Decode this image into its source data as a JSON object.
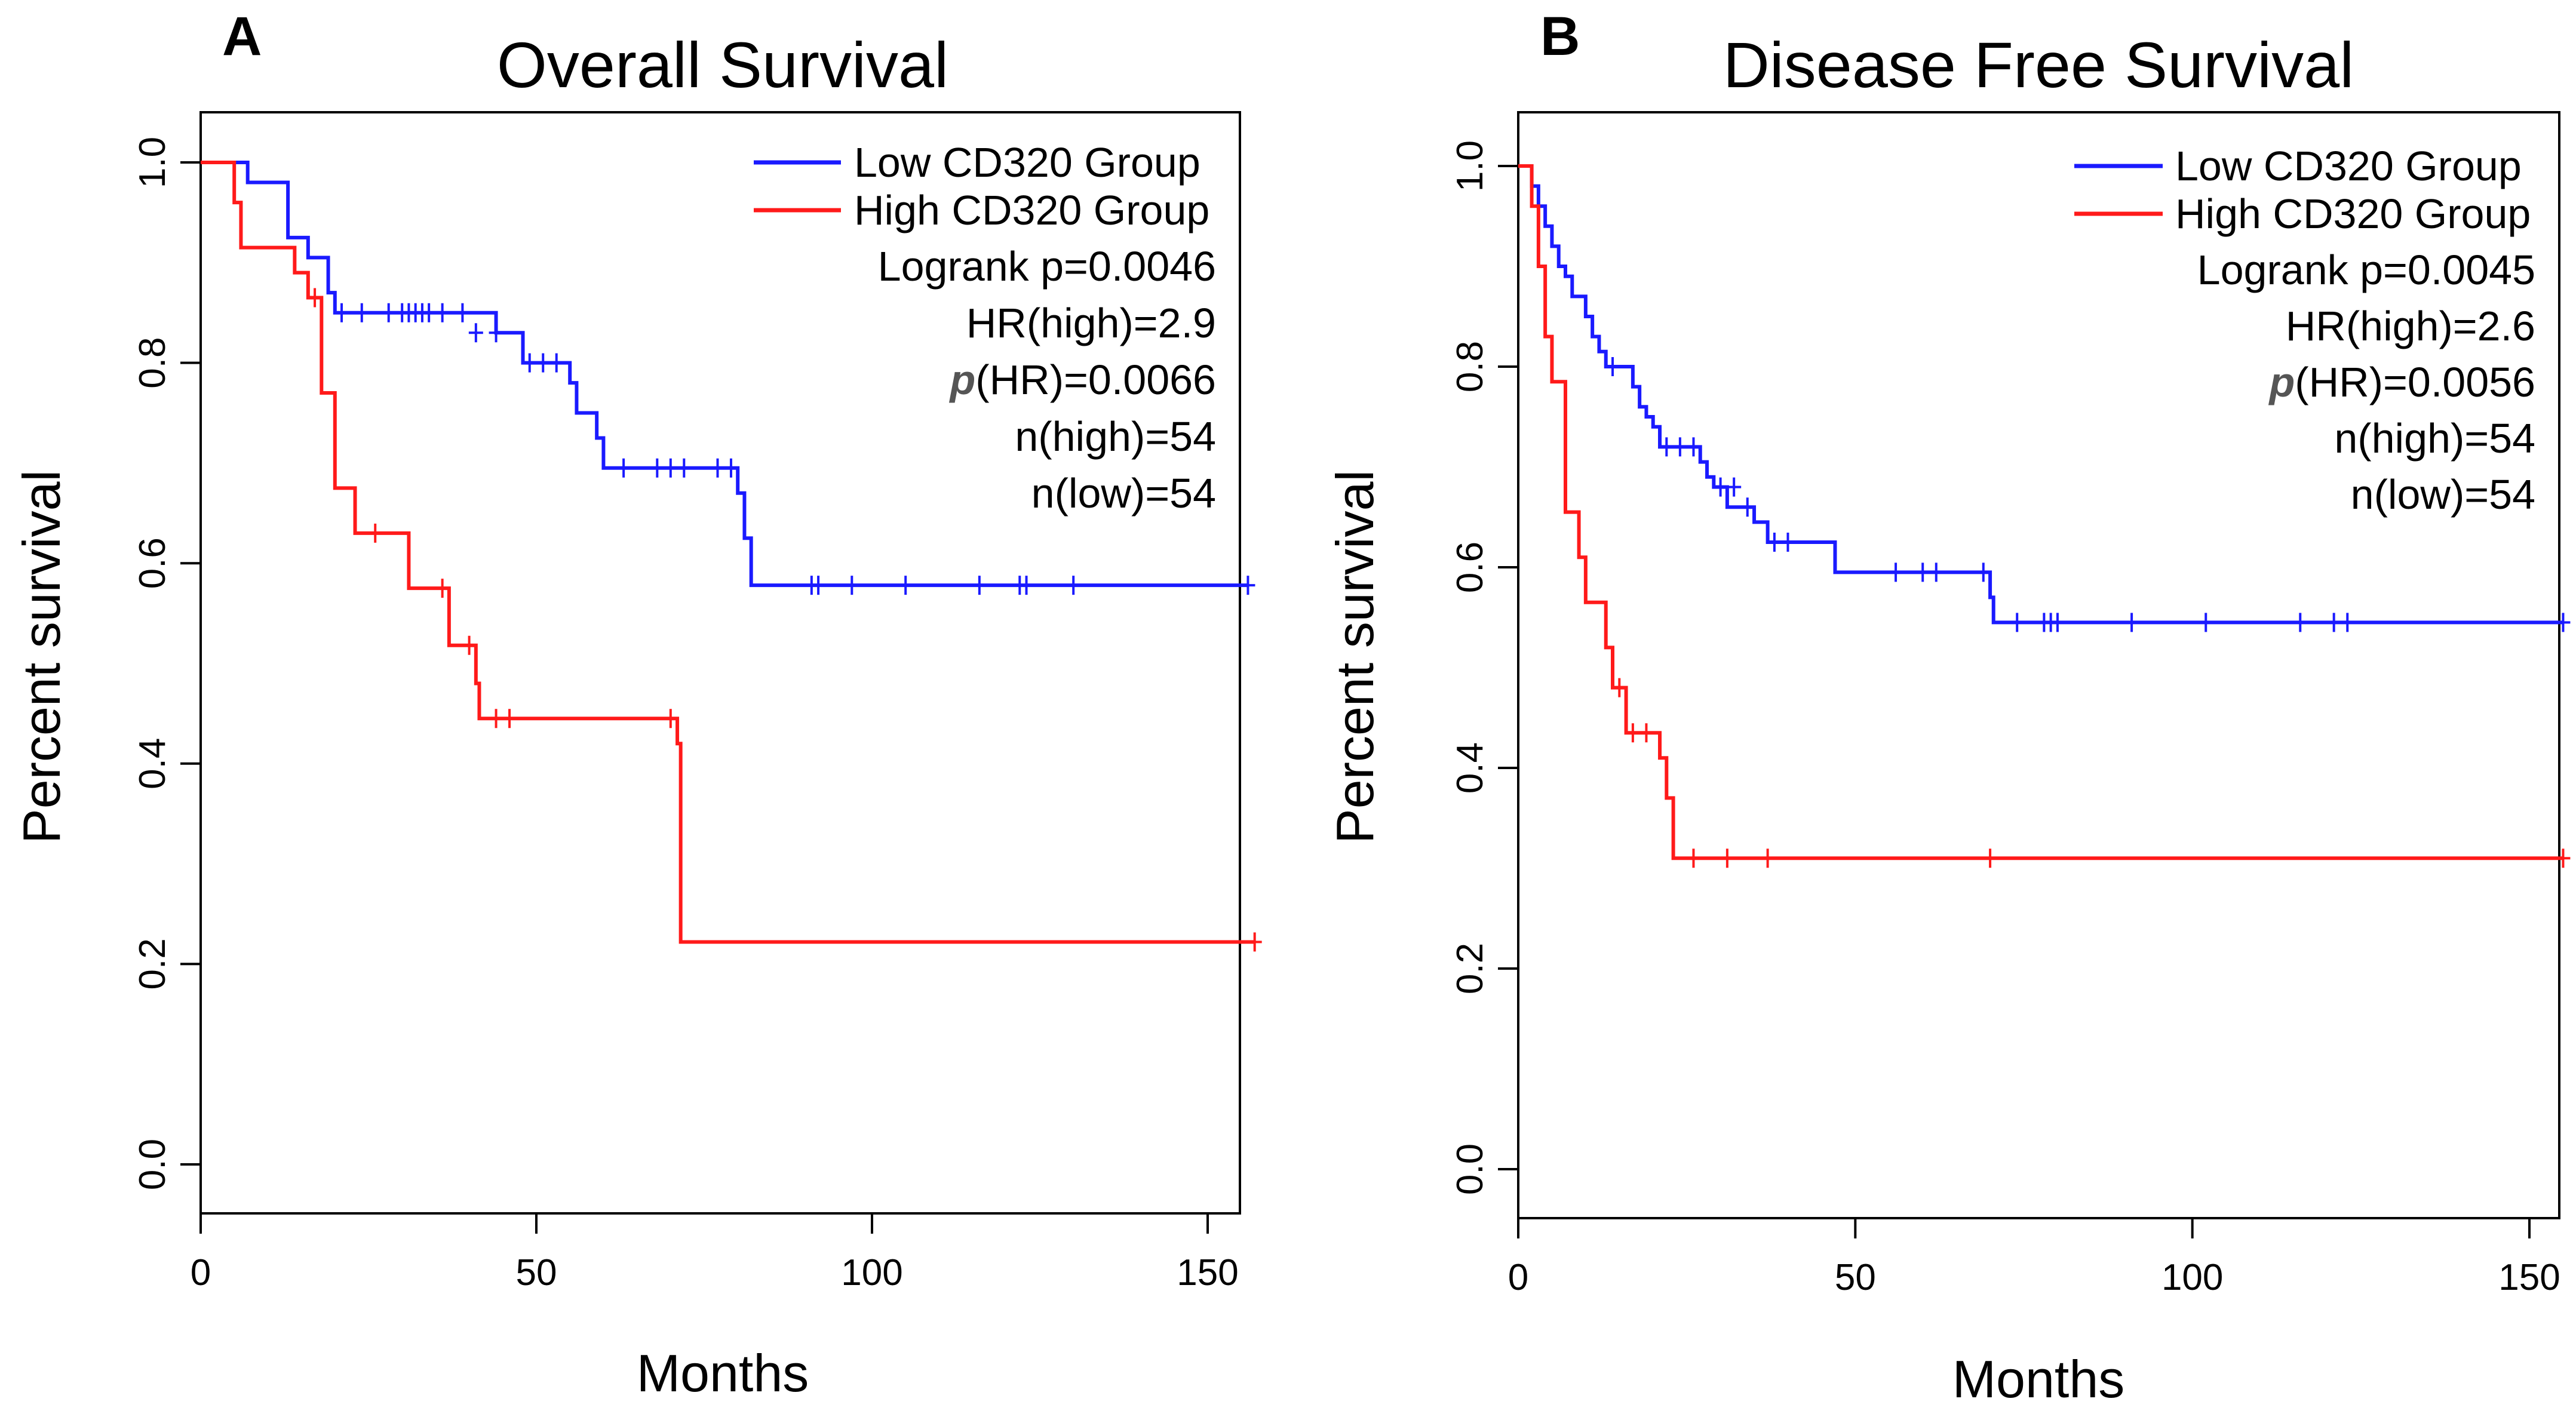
{
  "colors": {
    "low": "#1a1aff",
    "high": "#ff1a1a"
  },
  "chart_data": [
    {
      "panel": "A",
      "title": "Overall Survival",
      "type": "line",
      "xlabel": "Months",
      "ylabel": "Percent survival",
      "xlim": [
        0,
        160
      ],
      "ylim": [
        0,
        1.0
      ],
      "xticks": [
        0,
        50,
        100,
        150
      ],
      "yticks": [
        0.0,
        0.2,
        0.4,
        0.6,
        0.8,
        1.0
      ],
      "yticklabels": [
        "0.0",
        "0.2",
        "0.4",
        "0.6",
        "0.8",
        "1.0"
      ],
      "legend": [
        "Low CD320 Group",
        "High CD320 Group"
      ],
      "stats": {
        "logrank": "Logrank p=0.0046",
        "hr": "HR(high)=2.9",
        "p_prefix": "p",
        "p_hr": "(HR)=0.0066",
        "n_high": "n(high)=54",
        "n_low": "n(low)=54"
      },
      "series": [
        {
          "name": "Low CD320 Group",
          "color": "low",
          "steps": [
            [
              0,
              1.0
            ],
            [
              7,
              0.98
            ],
            [
              13,
              0.925
            ],
            [
              16,
              0.905
            ],
            [
              19,
              0.87
            ],
            [
              20,
              0.85
            ],
            [
              44,
              0.83
            ],
            [
              48,
              0.8
            ],
            [
              55,
              0.78
            ],
            [
              56,
              0.75
            ],
            [
              59,
              0.725
            ],
            [
              60,
              0.695
            ],
            [
              80,
              0.67
            ],
            [
              81,
              0.625
            ],
            [
              82,
              0.578
            ],
            [
              156,
              0.578
            ]
          ],
          "censors": [
            [
              21,
              0.85
            ],
            [
              24,
              0.85
            ],
            [
              28,
              0.85
            ],
            [
              30,
              0.85
            ],
            [
              31,
              0.85
            ],
            [
              32,
              0.85
            ],
            [
              33,
              0.85
            ],
            [
              34,
              0.85
            ],
            [
              36,
              0.85
            ],
            [
              39,
              0.85
            ],
            [
              41,
              0.83
            ],
            [
              44,
              0.83
            ],
            [
              49,
              0.8
            ],
            [
              51,
              0.8
            ],
            [
              53,
              0.8
            ],
            [
              63,
              0.695
            ],
            [
              68,
              0.695
            ],
            [
              70,
              0.695
            ],
            [
              72,
              0.695
            ],
            [
              77,
              0.695
            ],
            [
              79,
              0.695
            ],
            [
              91,
              0.578
            ],
            [
              92,
              0.578
            ],
            [
              97,
              0.578
            ],
            [
              105,
              0.578
            ],
            [
              116,
              0.578
            ],
            [
              122,
              0.578
            ],
            [
              123,
              0.578
            ],
            [
              130,
              0.578
            ],
            [
              156,
              0.578
            ]
          ]
        },
        {
          "name": "High CD320 Group",
          "color": "high",
          "steps": [
            [
              0,
              1.0
            ],
            [
              5,
              0.96
            ],
            [
              6,
              0.915
            ],
            [
              14,
              0.89
            ],
            [
              16,
              0.865
            ],
            [
              18,
              0.77
            ],
            [
              20,
              0.675
            ],
            [
              23,
              0.63
            ],
            [
              31,
              0.575
            ],
            [
              37,
              0.518
            ],
            [
              41,
              0.48
            ],
            [
              41.5,
              0.445
            ],
            [
              71,
              0.42
            ],
            [
              71.5,
              0.222
            ],
            [
              157,
              0.222
            ]
          ],
          "censors": [
            [
              17,
              0.865
            ],
            [
              26,
              0.63
            ],
            [
              36,
              0.575
            ],
            [
              40,
              0.518
            ],
            [
              44,
              0.445
            ],
            [
              46,
              0.445
            ],
            [
              70,
              0.445
            ],
            [
              157,
              0.222
            ]
          ]
        }
      ]
    },
    {
      "panel": "B",
      "title": "Disease Free Survival",
      "type": "line",
      "xlabel": "Months",
      "ylabel": "Percent survival",
      "xlim": [
        0,
        160
      ],
      "ylim": [
        0,
        1.0
      ],
      "xticks": [
        0,
        50,
        100,
        150
      ],
      "yticks": [
        0.0,
        0.2,
        0.4,
        0.6,
        0.8,
        1.0
      ],
      "yticklabels": [
        "0.0",
        "0.2",
        "0.4",
        "0.6",
        "0.8",
        "1.0"
      ],
      "legend": [
        "Low CD320 Group",
        "High CD320 Group"
      ],
      "stats": {
        "logrank": "Logrank p=0.0045",
        "hr": "HR(high)=2.6",
        "p_prefix": "p",
        "p_hr": "(HR)=0.0056",
        "n_high": "n(high)=54",
        "n_low": "n(low)=54"
      },
      "series": [
        {
          "name": "Low CD320 Group",
          "color": "low",
          "steps": [
            [
              0,
              1.0
            ],
            [
              2,
              0.98
            ],
            [
              3,
              0.96
            ],
            [
              4,
              0.94
            ],
            [
              5,
              0.92
            ],
            [
              6,
              0.9
            ],
            [
              7,
              0.89
            ],
            [
              8,
              0.87
            ],
            [
              10,
              0.85
            ],
            [
              11,
              0.83
            ],
            [
              12,
              0.815
            ],
            [
              13,
              0.8
            ],
            [
              17,
              0.78
            ],
            [
              18,
              0.76
            ],
            [
              19,
              0.75
            ],
            [
              20,
              0.74
            ],
            [
              21,
              0.72
            ],
            [
              27,
              0.705
            ],
            [
              28,
              0.69
            ],
            [
              29,
              0.68
            ],
            [
              31,
              0.66
            ],
            [
              35,
              0.645
            ],
            [
              37,
              0.625
            ],
            [
              47,
              0.595
            ],
            [
              70,
              0.57
            ],
            [
              70.5,
              0.545
            ],
            [
              155,
              0.545
            ]
          ],
          "censors": [
            [
              14,
              0.8
            ],
            [
              22,
              0.72
            ],
            [
              24,
              0.72
            ],
            [
              26,
              0.72
            ],
            [
              30,
              0.68
            ],
            [
              32,
              0.68
            ],
            [
              34,
              0.66
            ],
            [
              38,
              0.625
            ],
            [
              40,
              0.625
            ],
            [
              56,
              0.595
            ],
            [
              60,
              0.595
            ],
            [
              62,
              0.595
            ],
            [
              69,
              0.595
            ],
            [
              74,
              0.545
            ],
            [
              78,
              0.545
            ],
            [
              79,
              0.545
            ],
            [
              80,
              0.545
            ],
            [
              91,
              0.545
            ],
            [
              102,
              0.545
            ],
            [
              116,
              0.545
            ],
            [
              121,
              0.545
            ],
            [
              123,
              0.545
            ],
            [
              155,
              0.545
            ]
          ]
        },
        {
          "name": "High CD320 Group",
          "color": "high",
          "steps": [
            [
              0,
              1.0
            ],
            [
              2,
              0.96
            ],
            [
              3,
              0.9
            ],
            [
              4,
              0.83
            ],
            [
              5,
              0.785
            ],
            [
              7,
              0.655
            ],
            [
              9,
              0.61
            ],
            [
              10,
              0.565
            ],
            [
              13,
              0.52
            ],
            [
              14,
              0.48
            ],
            [
              16,
              0.435
            ],
            [
              21,
              0.41
            ],
            [
              22,
              0.37
            ],
            [
              23,
              0.31
            ],
            [
              155,
              0.31
            ]
          ],
          "censors": [
            [
              15,
              0.48
            ],
            [
              17,
              0.435
            ],
            [
              19,
              0.435
            ],
            [
              26,
              0.31
            ],
            [
              31,
              0.31
            ],
            [
              37,
              0.31
            ],
            [
              70,
              0.31
            ],
            [
              155,
              0.31
            ]
          ]
        }
      ]
    }
  ]
}
